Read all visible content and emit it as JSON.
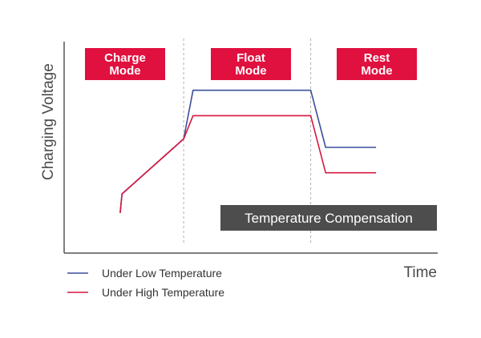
{
  "chart_data": {
    "type": "line",
    "title": "",
    "xlabel": "Time",
    "ylabel": "Charging Voltage",
    "modes": [
      "Charge\nMode",
      "Float\nMode",
      "Rest\nMode"
    ],
    "annotation": "Temperature Compensation",
    "xlim": [
      0,
      100
    ],
    "ylim": [
      0,
      100
    ],
    "phase_boundaries": [
      32,
      66
    ],
    "grid": false,
    "legend_position": "bottom-left",
    "series": [
      {
        "name": "Under Low Temperature",
        "color": "#3a4f9a",
        "x": [
          15,
          15.5,
          32,
          34.5,
          66,
          70,
          83.5
        ],
        "y": [
          19,
          28,
          54,
          77,
          77,
          50,
          50
        ]
      },
      {
        "name": "Under High Temperature",
        "color": "#d6173f",
        "x": [
          15,
          15.5,
          32,
          34.5,
          66,
          70,
          83.5
        ],
        "y": [
          19,
          28,
          54,
          65,
          65,
          38,
          38
        ]
      }
    ],
    "colors": {
      "mode_box": "#e0103f",
      "banner": "#4d4d4d",
      "axis": "#555555",
      "divider": "#b0b0b0"
    }
  }
}
